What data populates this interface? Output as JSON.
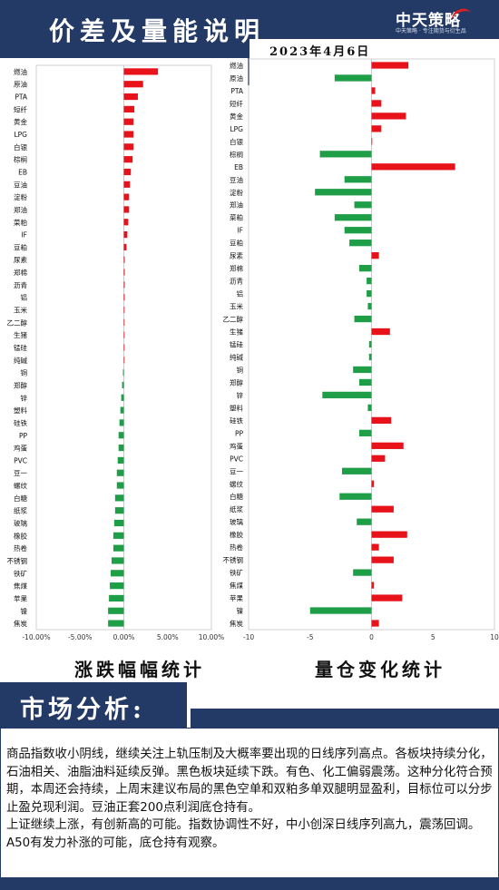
{
  "header": {
    "title": "价差及量能说明",
    "logo_main": "中天策略",
    "logo_sub": "中天策略 · 专注期货与衍生品",
    "date": "2023年4月6日"
  },
  "chart_data": [
    {
      "type": "bar",
      "orientation": "horizontal",
      "label": "涨跌幅幅统计",
      "categories": [
        "燃油",
        "原油",
        "PTA",
        "短纤",
        "黄金",
        "LPG",
        "白银",
        "棕榈",
        "EB",
        "豆油",
        "淀粉",
        "郑油",
        "菜粕",
        "IF",
        "豆粕",
        "尿素",
        "郑棉",
        "沥青",
        "铝",
        "玉米",
        "乙二醇",
        "生猪",
        "锰硅",
        "纯碱",
        "铜",
        "郑醇",
        "锌",
        "塑料",
        "硅铁",
        "PP",
        "鸡蛋",
        "PVC",
        "豆一",
        "螺纹",
        "白糖",
        "纸浆",
        "玻璃",
        "橡胶",
        "热卷",
        "不锈钢",
        "铁矿",
        "焦煤",
        "苹果",
        "镍",
        "焦炭"
      ],
      "values": [
        3.9,
        2.2,
        1.6,
        1.2,
        1.1,
        1.1,
        1.1,
        1.0,
        0.8,
        0.7,
        0.6,
        0.6,
        0.5,
        0.4,
        0.3,
        0.1,
        0.1,
        0.1,
        0.1,
        0.05,
        0,
        0,
        0,
        0,
        -0.1,
        -0.2,
        -0.3,
        -0.4,
        -0.5,
        -0.6,
        -0.6,
        -0.7,
        -0.8,
        -0.8,
        -1.0,
        -1.0,
        -1.1,
        -1.2,
        -1.2,
        -1.4,
        -1.5,
        -1.6,
        -1.7,
        -1.8,
        -1.8
      ],
      "x_ticks": [
        "-10.00%",
        "-5.00%",
        "0.00%",
        "5.00%",
        "10.00%"
      ],
      "xlim": [
        -10,
        10
      ],
      "colors": {
        "positive": "#e8121a",
        "negative": "#1f9e48"
      }
    },
    {
      "type": "bar",
      "orientation": "horizontal",
      "label": "量仓变化统计",
      "categories": [
        "燃油",
        "原油",
        "PTA",
        "短纤",
        "黄金",
        "LPG",
        "白银",
        "棕榈",
        "EB",
        "豆油",
        "淀粉",
        "郑油",
        "菜粕",
        "IF",
        "豆粕",
        "尿素",
        "郑棉",
        "沥青",
        "铝",
        "玉米",
        "乙二醇",
        "生猪",
        "锰硅",
        "纯碱",
        "铜",
        "郑醇",
        "锌",
        "塑料",
        "硅铁",
        "PP",
        "鸡蛋",
        "PVC",
        "豆一",
        "螺纹",
        "白糖",
        "纸浆",
        "玻璃",
        "橡胶",
        "热卷",
        "不锈钢",
        "铁矿",
        "焦煤",
        "苹果",
        "镍",
        "焦炭"
      ],
      "values": [
        3.0,
        -3.0,
        0.3,
        0.8,
        2.8,
        0.8,
        0.05,
        -4.2,
        6.8,
        -2.2,
        -4.6,
        -1.4,
        -3.0,
        -2.2,
        -1.8,
        0.6,
        -1.0,
        -0.4,
        -0.4,
        -0.3,
        -1.4,
        1.5,
        -0.2,
        -0.2,
        -1.5,
        -1.0,
        -4.0,
        -0.3,
        1.6,
        -1.0,
        2.6,
        1.1,
        -2.4,
        0.2,
        -2.6,
        1.8,
        -1.2,
        2.9,
        0.6,
        1.8,
        -1.5,
        0.2,
        2.5,
        -5.0,
        0.6
      ],
      "x_ticks": [
        "-10",
        "-5",
        "0",
        "5",
        "10"
      ],
      "xlim": [
        -10,
        10
      ],
      "colors": {
        "positive": "#e8121a",
        "negative": "#1f9e48"
      }
    }
  ],
  "section": {
    "title": "市场分析:",
    "paragraphs": [
      "商品指数收小阴线，继续关注上轨压制及大概率要出现的日线序列高点。各板块持续分化，石油相关、油脂油料延续反弹。黑色板块延续下跌。有色、化工偏弱震荡。这种分化符合预期，本周还会持续，上周末建议布局的黑色空单和双粕多单双腿明显盈利，目标位可以分步止盈兑现利润。豆油正套200点利润底仓持有。",
      "上证继续上涨，有创新高的可能。指数协调性不好，中小创深日线序列高九，震荡回调。A50有发力补涨的可能，底仓持有观察。"
    ]
  }
}
